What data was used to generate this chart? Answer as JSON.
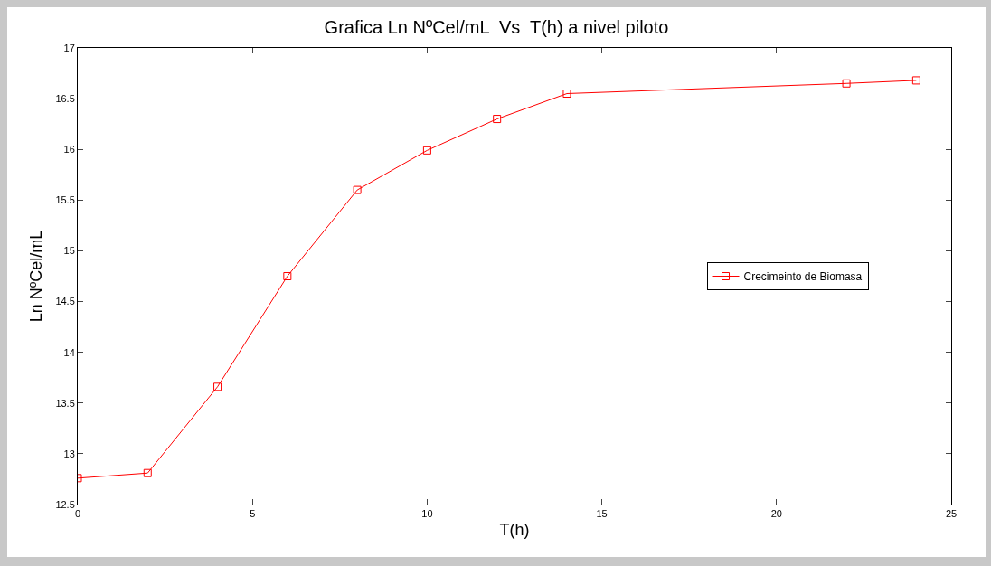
{
  "chart_data": {
    "type": "line",
    "title": "Grafica Ln NºCel/mL  Vs  T(h) a nivel piloto",
    "xlabel": "T(h)",
    "ylabel": "Ln NºCel/mL",
    "x": [
      0,
      2,
      4,
      6,
      8,
      10,
      12,
      14,
      22,
      24
    ],
    "series": [
      {
        "name": "Crecimeinto de Biomasa",
        "color": "#ff0000",
        "values": [
          12.76,
          12.81,
          13.66,
          14.75,
          15.6,
          15.99,
          16.3,
          16.55,
          16.65,
          16.68
        ]
      }
    ],
    "xlim": [
      0,
      25
    ],
    "xticks": [
      0,
      5,
      10,
      15,
      20,
      25
    ],
    "ylim": [
      12.5,
      17
    ],
    "yticks": [
      12.5,
      13,
      13.5,
      14,
      14.5,
      15,
      15.5,
      16,
      16.5,
      17
    ],
    "grid": false,
    "legend": "right",
    "marker": "square",
    "line_style": "solid"
  }
}
